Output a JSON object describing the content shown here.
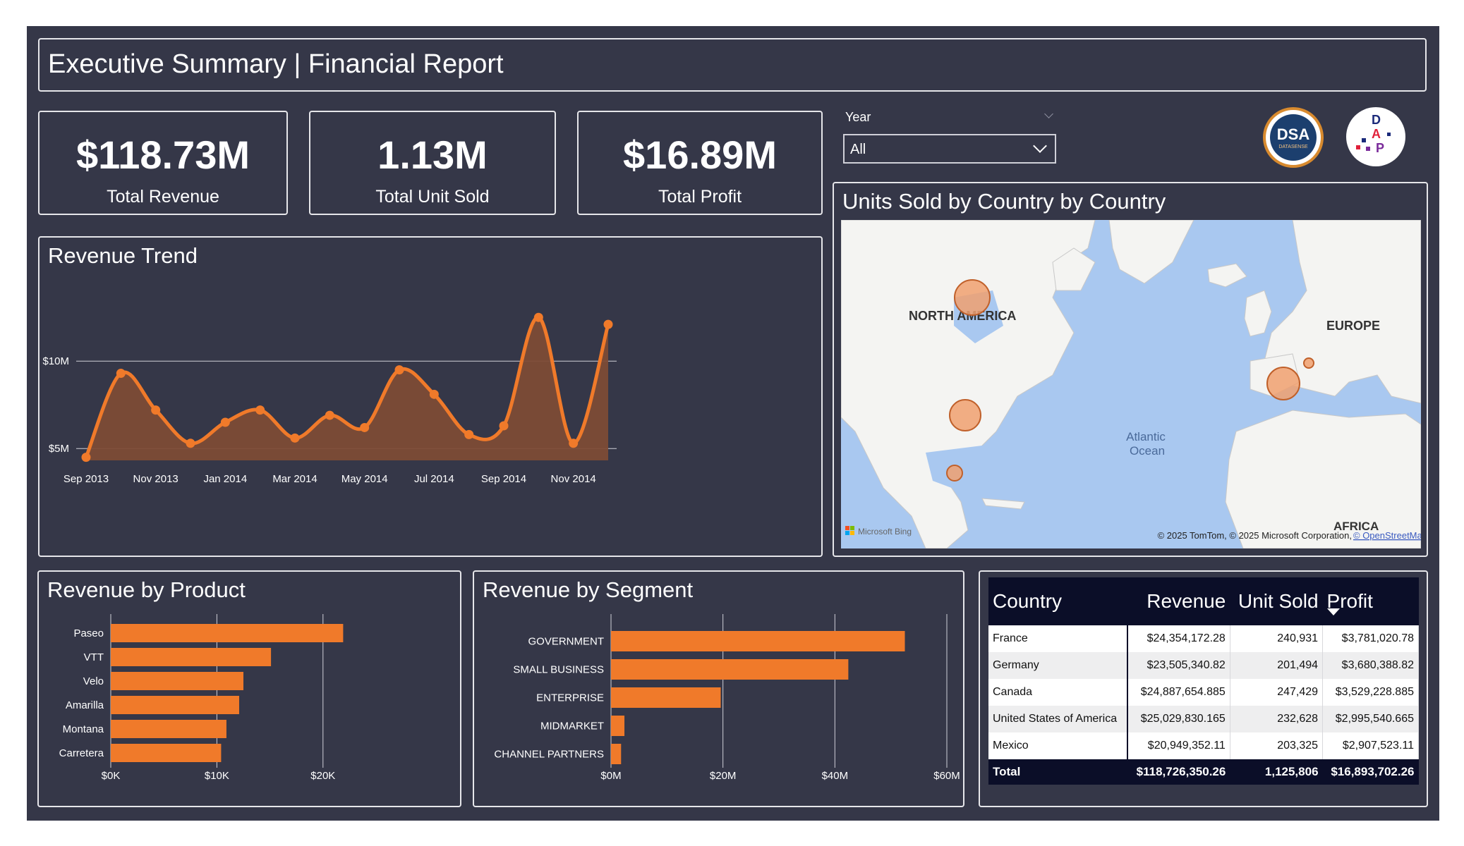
{
  "report": {
    "title": "Executive Summary | Financial Report"
  },
  "kpis": [
    {
      "value": "$118.73M",
      "label": "Total Revenue"
    },
    {
      "value": "1.13M",
      "label": "Total Unit Sold"
    },
    {
      "value": "$16.89M",
      "label": "Total Profit"
    }
  ],
  "filter": {
    "label": "Year",
    "selected": "All"
  },
  "logos": {
    "dsa_text": "DSA",
    "dsa_sub": "DATASENSE",
    "dap_letters": [
      "D",
      "A",
      "P"
    ]
  },
  "map": {
    "title": "Units Sold by Country by Country",
    "labels": {
      "north_america": "NORTH AMERICA",
      "europe": "EUROPE",
      "atlantic_1": "Atlantic",
      "atlantic_2": "Ocean",
      "africa": "AFRICA"
    },
    "attribution": "© 2025 TomTom, © 2025 Microsoft Corporation, ",
    "attribution_link": "© OpenStreetMap",
    "provider": "Microsoft Bing",
    "bubbles": [
      {
        "country": "Canada",
        "units": 247429
      },
      {
        "country": "United States of America",
        "units": 232628
      },
      {
        "country": "Mexico",
        "units": 203325
      },
      {
        "country": "France",
        "units": 240931
      },
      {
        "country": "Germany",
        "units": 201494
      }
    ]
  },
  "trend": {
    "title": "Revenue Trend"
  },
  "product": {
    "title": "Revenue by Product"
  },
  "segment": {
    "title": "Revenue by Segment"
  },
  "table": {
    "headers": [
      "Country",
      "Revenue",
      "Unit Sold",
      "Profit"
    ],
    "rows": [
      [
        "France",
        "$24,354,172.28",
        "240,931",
        "$3,781,020.78"
      ],
      [
        "Germany",
        "$23,505,340.82",
        "201,494",
        "$3,680,388.82"
      ],
      [
        "Canada",
        "$24,887,654.885",
        "247,429",
        "$3,529,228.885"
      ],
      [
        "United States of America",
        "$25,029,830.165",
        "232,628",
        "$2,995,540.665"
      ],
      [
        "Mexico",
        "$20,949,352.11",
        "203,325",
        "$2,907,523.11"
      ]
    ],
    "total": [
      "Total",
      "$118,726,350.26",
      "1,125,806",
      "$16,893,702.26"
    ]
  },
  "colors": {
    "background": "#353748",
    "accent": "#f07a2a",
    "area_fill": "#7d4b36",
    "table_header": "#0b0e28"
  },
  "chart_data": [
    {
      "type": "area",
      "title": "Revenue Trend",
      "x": [
        "Sep 2013",
        "Oct 2013",
        "Nov 2013",
        "Dec 2013",
        "Jan 2014",
        "Feb 2014",
        "Mar 2014",
        "Apr 2014",
        "May 2014",
        "Jun 2014",
        "Jul 2014",
        "Aug 2014",
        "Sep 2014",
        "Oct 2014",
        "Nov 2014",
        "Dec 2014"
      ],
      "x_ticks": [
        "Sep 2013",
        "Nov 2013",
        "Jan 2014",
        "Mar 2014",
        "May 2014",
        "Jul 2014",
        "Sep 2014",
        "Nov 2014"
      ],
      "values": [
        4.5,
        9.3,
        7.2,
        5.3,
        6.5,
        7.2,
        5.6,
        6.9,
        6.2,
        9.5,
        8.1,
        5.8,
        6.3,
        12.5,
        5.3,
        12.1
      ],
      "y_unit": "M",
      "y_ticks": [
        {
          "value": 5,
          "label": "$5M"
        },
        {
          "value": 10,
          "label": "$10M"
        }
      ],
      "ylim": [
        4,
        14
      ],
      "grid": true
    },
    {
      "type": "bar",
      "orientation": "horizontal",
      "title": "Revenue by Product",
      "categories": [
        "Paseo",
        "VTT",
        "Velo",
        "Amarilla",
        "Montana",
        "Carretera"
      ],
      "values": [
        21.9,
        15.1,
        12.5,
        12.1,
        10.9,
        10.4
      ],
      "x_unit": "K",
      "x_ticks": [
        {
          "value": 0,
          "label": "$0K"
        },
        {
          "value": 10,
          "label": "$10K"
        },
        {
          "value": 20,
          "label": "$20K"
        }
      ],
      "xlim": [
        0,
        25
      ],
      "grid": true
    },
    {
      "type": "bar",
      "orientation": "horizontal",
      "title": "Revenue by Segment",
      "categories": [
        "GOVERNMENT",
        "SMALL BUSINESS",
        "ENTERPRISE",
        "MIDMARKET",
        "CHANNEL PARTNERS"
      ],
      "values": [
        52.5,
        42.4,
        19.6,
        2.4,
        1.8
      ],
      "x_unit": "M",
      "x_ticks": [
        {
          "value": 0,
          "label": "$0M"
        },
        {
          "value": 20,
          "label": "$20M"
        },
        {
          "value": 40,
          "label": "$40M"
        },
        {
          "value": 60,
          "label": "$60M"
        }
      ],
      "xlim": [
        0,
        60
      ],
      "grid": true
    }
  ]
}
